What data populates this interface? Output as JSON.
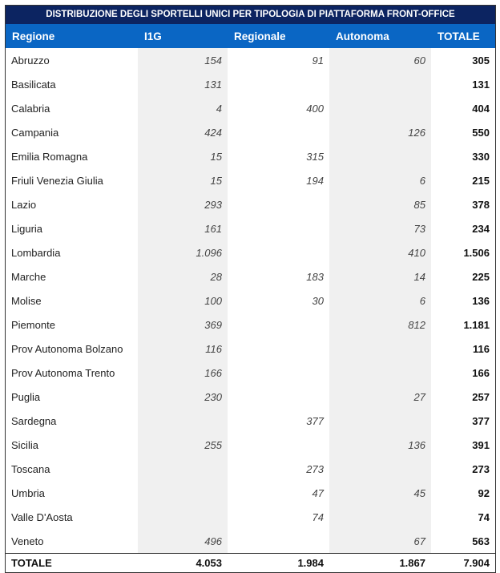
{
  "title": "DISTRIBUZIONE DEGLI SPORTELLI UNICI PER TIPOLOGIA DI PIATTAFORMA FRONT-OFFICE",
  "headers": [
    "Regione",
    "I1G",
    "Regionale",
    "Autonoma",
    "TOTALE"
  ],
  "rows": [
    [
      "Abruzzo",
      "154",
      "91",
      "60",
      "305"
    ],
    [
      "Basilicata",
      "131",
      "",
      "",
      "131"
    ],
    [
      "Calabria",
      "4",
      "400",
      "",
      "404"
    ],
    [
      "Campania",
      "424",
      "",
      "126",
      "550"
    ],
    [
      "Emilia Romagna",
      "15",
      "315",
      "",
      "330"
    ],
    [
      "Friuli Venezia Giulia",
      "15",
      "194",
      "6",
      "215"
    ],
    [
      "Lazio",
      "293",
      "",
      "85",
      "378"
    ],
    [
      "Liguria",
      "161",
      "",
      "73",
      "234"
    ],
    [
      "Lombardia",
      "1.096",
      "",
      "410",
      "1.506"
    ],
    [
      "Marche",
      "28",
      "183",
      "14",
      "225"
    ],
    [
      "Molise",
      "100",
      "30",
      "6",
      "136"
    ],
    [
      "Piemonte",
      "369",
      "",
      "812",
      "1.181"
    ],
    [
      "Prov Autonoma Bolzano",
      "116",
      "",
      "",
      "116"
    ],
    [
      "Prov Autonoma Trento",
      "166",
      "",
      "",
      "166"
    ],
    [
      "Puglia",
      "230",
      "",
      "27",
      "257"
    ],
    [
      "Sardegna",
      "",
      "377",
      "",
      "377"
    ],
    [
      "Sicilia",
      "255",
      "",
      "136",
      "391"
    ],
    [
      "Toscana",
      "",
      "273",
      "",
      "273"
    ],
    [
      "Umbria",
      "",
      "47",
      "45",
      "92"
    ],
    [
      "Valle D'Aosta",
      "",
      "74",
      "",
      "74"
    ],
    [
      "Veneto",
      "496",
      "",
      "67",
      "563"
    ]
  ],
  "total": [
    "TOTALE",
    "4.053",
    "1.984",
    "1.867",
    "7.904"
  ]
}
